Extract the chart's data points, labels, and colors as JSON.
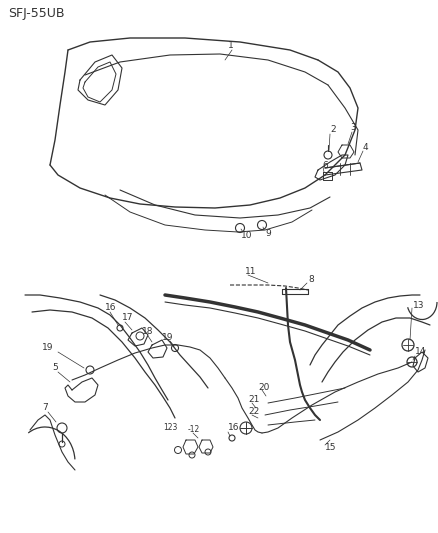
{
  "title": "SFJ-55UB",
  "bg_color": "#ffffff",
  "lc": "#333333",
  "fs": 6.5,
  "fig_w": 4.38,
  "fig_h": 5.33,
  "dpi": 100
}
